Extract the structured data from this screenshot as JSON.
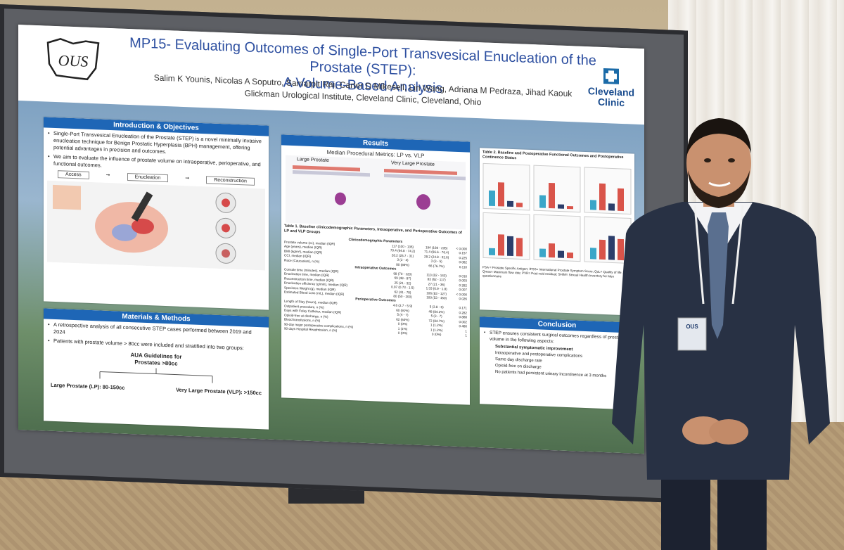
{
  "poster": {
    "title_line1": "MP15- Evaluating Outcomes of Single-Port Transvesical Enucleation of the Prostate (STEP):",
    "title_line2": "A Volume-Based Analysis",
    "authors": "Salim K Younis, Nicolas A Soputro, Samarpit Rai, Carter D Mikesell, Lin Wang, Adriana M Pedraza, Jihad Kaouk",
    "affiliation": "Glickman Urological Institute, Cleveland Clinic, Cleveland, Ohio",
    "logo_left": "OUS",
    "logo_right_line1": "Cleveland",
    "logo_right_line2": "Clinic",
    "intro": {
      "heading": "Introduction & Objectives",
      "bullets": [
        "Single-Port Transvesical Enucleation of the Prostate (STEP) is a novel minimally invasive enucleation technique for Benign Prostatic Hyperplasia (BPH) management, offering potential advantages in precision and outcomes.",
        "We aim to evaluate the influence of prostate volume on intraoperative, perioperative, and functional outcomes."
      ],
      "steps": [
        "Access",
        "Enucleation",
        "Reconstruction"
      ]
    },
    "methods": {
      "heading": "Materials & Methods",
      "bullets": [
        "A retrospective analysis of all consecutive STEP cases performed between 2019 and 2024",
        "Patients with prostate volume > 80cc were included and stratified into two groups:"
      ],
      "guideline_line1": "AUA Guidelines for",
      "guideline_line2": "Prostates >80cc",
      "group_lp": "Large Prostate (LP): 80-150cc",
      "group_vlp": "Very Large Prostate (VLP): >150cc"
    },
    "results": {
      "heading": "Results",
      "subtitle": "Median Procedural Metrics: LP vs. VLP",
      "large": "Large Prostate",
      "very_large": "Very Large Prostate",
      "table_title": "Table 1. Baseline clinicodemographic Parameters, Intraoperative, and Perioperative Outcomes of LP and VLP Groups",
      "sections": [
        "Clinicodemographic Parameters",
        "Intraoperative Outcomes",
        "Perioperative Outcomes"
      ],
      "rows": [
        [
          "Prostate volume (cc), median (IQR)",
          "117 (100 - 136)",
          "194 (169 - 235)",
          "< 0.000"
        ],
        [
          "Age (years), median (IQR)",
          "70.4 (64.8 - 74.2)",
          "71.4 (66.6 - 76.4)",
          "0.157"
        ],
        [
          "BMI (kg/m²), median (IQR)",
          "28.2 (25.7 - 31)",
          "28.2 (24.8 - 32.6)",
          "0.225"
        ],
        [
          "CCI, median (IQR)",
          "3 (2 - 4)",
          "3 (3 - 5)",
          "0.082"
        ],
        [
          "Race (Caucasian), n (%)",
          "80 (86%)",
          "66 (76.7%)",
          "0.110"
        ],
        [
          "Console time (minutes), median (IQR)",
          "98 (70 - 120)",
          "113 (82 - 143)",
          "0.010"
        ],
        [
          "Enucleation time, median (IQR)",
          "69 (48 - 87)",
          "83 (62 - 117)",
          "0.003"
        ],
        [
          "Reconstruction time, median (IQR)",
          "25 (21 - 32)",
          "27 (21 - 36)",
          "0.282"
        ],
        [
          "Enucleation efficiency (g/min), median (IQR)",
          "0.97 (0.73 - 1.5)",
          "1.33 (0.9 - 1.8)",
          "0.007"
        ],
        [
          "Specimen Weight (g), median (IQR)",
          "62 (41 - 78)",
          "106 (83 - 127)",
          "< 0.000"
        ],
        [
          "Estimated Blood Loss (mL), median (IQR)",
          "80 (50 - 200)",
          "100 (53 - 150)",
          "0.026"
        ],
        [
          "Length of Stay (hours), median (IQR)",
          "4.6 (3.7 - 5.9)",
          "5 (3.8 - 6)",
          "0.171"
        ],
        [
          "Outpatient procedure, n (%)",
          "60 (91%)",
          "48 (84.2%)",
          "0.282"
        ],
        [
          "Days with Foley Catheter, median (IQR)",
          "5 (4 - 7)",
          "5 (3 - 7)",
          "0.888"
        ],
        [
          "Opioid-free at discharge, n (%)",
          "62 (64%)",
          "72 (84.7%)",
          "0.002"
        ],
        [
          "Blood transfusions, n (%)",
          "0 (0%)",
          "1 (1.2%)",
          "0.480"
        ],
        [
          "90-day major postoperative complications, n (%)",
          "1 (1%)",
          "1 (1.2%)",
          "1"
        ],
        [
          "90 days Hospital Readmission, n (%)",
          "0 (0%)",
          "0 (0%)",
          "1"
        ]
      ]
    },
    "table2": {
      "title": "Table 2. Baseline and Postoperative Functional Outcomes and Postoperative Continence Status",
      "footnote": "PSA = Prostate Specific Antigen; IPSS= International Prostate Symptom Score; QoL= Quality of life; Qmax= Maximum flow rate; PVR= Post-void residual; SHIM= Sexual Health Inventory for Men questionnaire"
    },
    "conclusion": {
      "heading": "Conclusion",
      "lead": "STEP ensures consistent surgical outcomes regardless of prostate volume in the following aspects:",
      "items": [
        "Substantial symptomatic improvement",
        "Intraoperative and postoperative complications",
        "Same day discharge rate",
        "Opioid-free on discharge",
        "No patients had persistent urinary incontinence at 3 months"
      ]
    }
  },
  "badge": "OUS",
  "colors": {
    "accent": "#1e66b6",
    "title": "#2d4fa0",
    "bar_red": "#d9544a",
    "bar_teal": "#3ba6c8",
    "bar_navy": "#2c3e6b"
  }
}
